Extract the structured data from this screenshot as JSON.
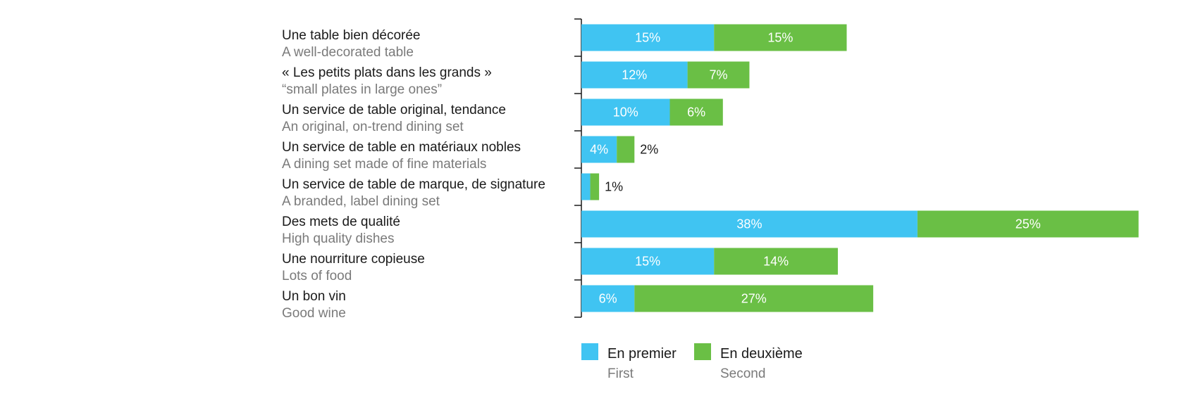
{
  "colors": {
    "first": "#40c4f2",
    "second": "#6abf45",
    "axis": "#1a1a1a"
  },
  "chart_data": {
    "type": "bar",
    "stacked": true,
    "orientation": "horizontal",
    "categories": [
      {
        "fr": "Une table bien décorée",
        "en": "A well-decorated table"
      },
      {
        "fr": "« Les petits plats dans les grands »",
        "en": "“small plates in large ones”"
      },
      {
        "fr": "Un service de table original, tendance",
        "en": "An original, on-trend dining set"
      },
      {
        "fr": "Un service de table en matériaux nobles",
        "en": "A dining set made of fine materials"
      },
      {
        "fr": "Un service de table de marque, de signature",
        "en": "A branded, label dining set"
      },
      {
        "fr": "Des mets de qualité",
        "en": "High quality dishes"
      },
      {
        "fr": "Une nourriture copieuse",
        "en": "Lots of food"
      },
      {
        "fr": "Un bon vin",
        "en": "Good wine"
      }
    ],
    "series": [
      {
        "name": "En premier",
        "name_en": "First",
        "values": [
          15,
          12,
          10,
          4,
          1,
          38,
          15,
          6
        ],
        "labels": [
          "15%",
          "12%",
          "10%",
          "4%",
          "",
          "38%",
          "15%",
          "6%"
        ]
      },
      {
        "name": "En deuxième",
        "name_en": "Second",
        "values": [
          15,
          7,
          6,
          2,
          1,
          25,
          14,
          27
        ],
        "labels": [
          "15%",
          "7%",
          "6%",
          "2%",
          "1%",
          "25%",
          "14%",
          "27%"
        ]
      }
    ],
    "legend_position": "bottom",
    "grid": false
  }
}
